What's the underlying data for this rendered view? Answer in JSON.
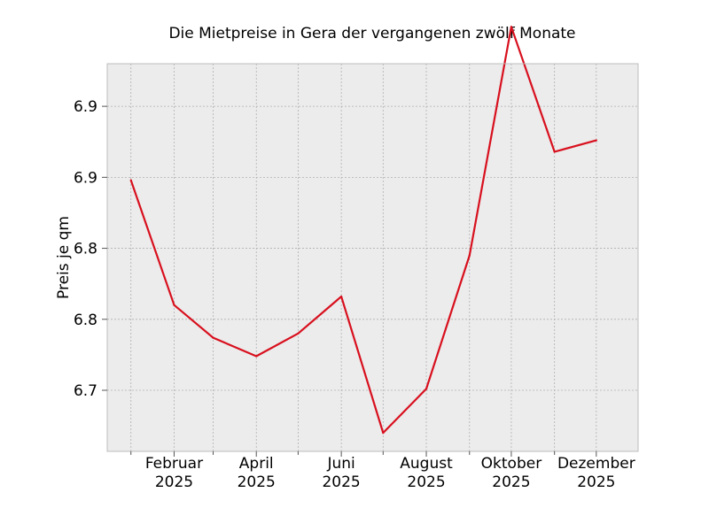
{
  "chart_data": {
    "type": "line",
    "title": "Die Mietpreise in Gera der vergangenen zwölf Monate",
    "xlabel": "",
    "ylabel": "Preis je qm",
    "x": [
      "2025-01",
      "2025-02",
      "2025-03",
      "2025-04",
      "2025-05",
      "2025-06",
      "2025-07",
      "2025-08",
      "2025-09",
      "2025-10",
      "2025-11",
      "2025-12"
    ],
    "series": [
      {
        "values": [
          6.873,
          6.785,
          6.762,
          6.749,
          6.765,
          6.791,
          6.695,
          6.726,
          6.82,
          6.981,
          6.893,
          6.901
        ]
      }
    ],
    "xticks": [
      {
        "x": "2025-02",
        "line1": "Februar",
        "line2": "2025"
      },
      {
        "x": "2025-04",
        "line1": "April",
        "line2": "2025"
      },
      {
        "x": "2025-06",
        "line1": "Juni",
        "line2": "2025"
      },
      {
        "x": "2025-08",
        "line1": "August",
        "line2": "2025"
      },
      {
        "x": "2025-10",
        "line1": "Oktober",
        "line2": "2025"
      },
      {
        "x": "2025-12",
        "line1": "Dezember",
        "line2": "2025"
      }
    ],
    "xlim": [
      "2024-12-15",
      "2025-12-31"
    ],
    "yticks": [
      6.725,
      6.775,
      6.825,
      6.875,
      6.925
    ],
    "ytick_labels": [
      "6.7",
      "6.8",
      "6.8",
      "6.9",
      "6.9"
    ],
    "ylim": [
      6.682,
      6.955
    ],
    "grid": true,
    "line_color": "#d8101e",
    "background": "#ececec",
    "grid_color": "#b0b0b0",
    "frame_color": "#bcbcbc"
  }
}
